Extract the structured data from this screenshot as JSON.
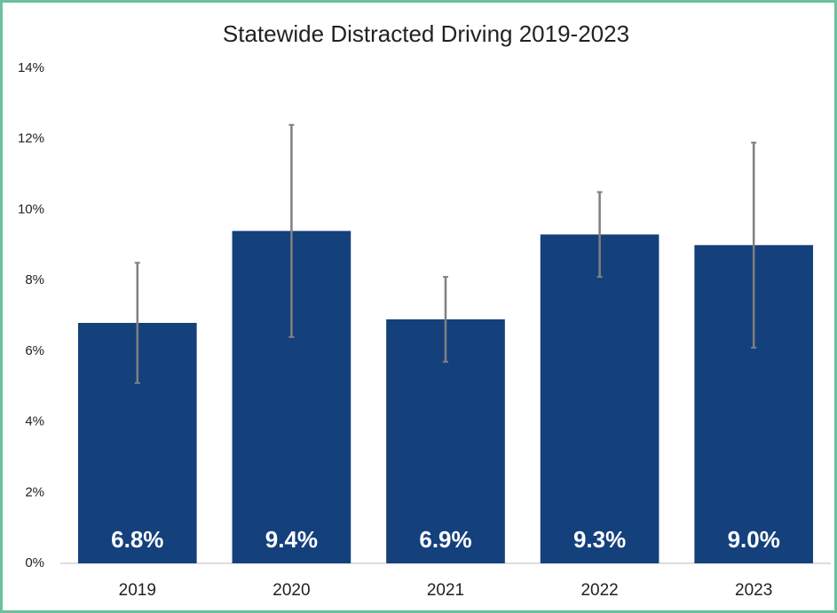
{
  "chart_data": {
    "type": "bar",
    "title": "Statewide Distracted Driving 2019-2023",
    "categories": [
      "2019",
      "2020",
      "2021",
      "2022",
      "2023"
    ],
    "values": [
      6.8,
      9.4,
      6.9,
      9.3,
      9.0
    ],
    "value_labels": [
      "6.8%",
      "9.4%",
      "6.9%",
      "9.3%",
      "9.0%"
    ],
    "errors": [
      1.7,
      3.0,
      1.2,
      1.2,
      2.9
    ],
    "color": "#14407c",
    "error_color": "#808080",
    "ylim": [
      0,
      14
    ],
    "yticks": [
      {
        "value": 0,
        "label": "0%"
      },
      {
        "value": 2,
        "label": "2%"
      },
      {
        "value": 4,
        "label": "4%"
      },
      {
        "value": 6,
        "label": "6%"
      },
      {
        "value": 8,
        "label": "8%"
      },
      {
        "value": 10,
        "label": "10%"
      },
      {
        "value": 12,
        "label": "12%"
      },
      {
        "value": 14,
        "label": "14%"
      }
    ],
    "grid": false
  }
}
